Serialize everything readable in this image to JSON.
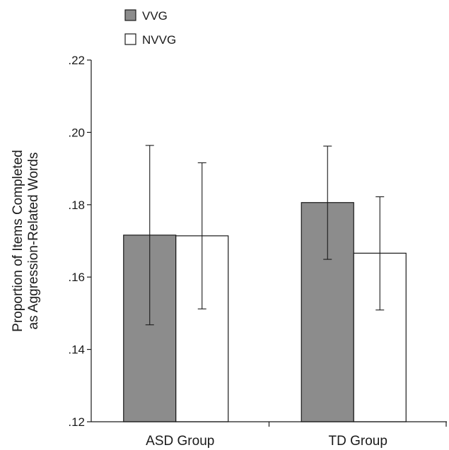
{
  "chart_data": {
    "type": "bar",
    "title": "",
    "xlabel": "",
    "ylabel_lines": [
      "Proportion of Items Completed",
      "as Aggression-Related Words"
    ],
    "categories": [
      "ASD Group",
      "TD Group"
    ],
    "ylim": [
      0.12,
      0.22
    ],
    "yticks": [
      0.12,
      0.14,
      0.16,
      0.18,
      0.2,
      0.22
    ],
    "ytick_labels": [
      ".12",
      ".14",
      ".16",
      ".18",
      ".20",
      ".22"
    ],
    "series": [
      {
        "name": "VVG",
        "color": "#8c8c8c",
        "values": [
          0.1716,
          0.1806
        ],
        "error_high": [
          0.1964,
          0.1962
        ],
        "error_low": [
          0.1468,
          0.1649
        ]
      },
      {
        "name": "NVVG",
        "color": "#ffffff",
        "values": [
          0.1714,
          0.1666
        ],
        "error_high": [
          0.1916,
          0.1822
        ],
        "error_low": [
          0.1512,
          0.1509
        ]
      }
    ],
    "legend_position": "top-left",
    "grid": false
  }
}
